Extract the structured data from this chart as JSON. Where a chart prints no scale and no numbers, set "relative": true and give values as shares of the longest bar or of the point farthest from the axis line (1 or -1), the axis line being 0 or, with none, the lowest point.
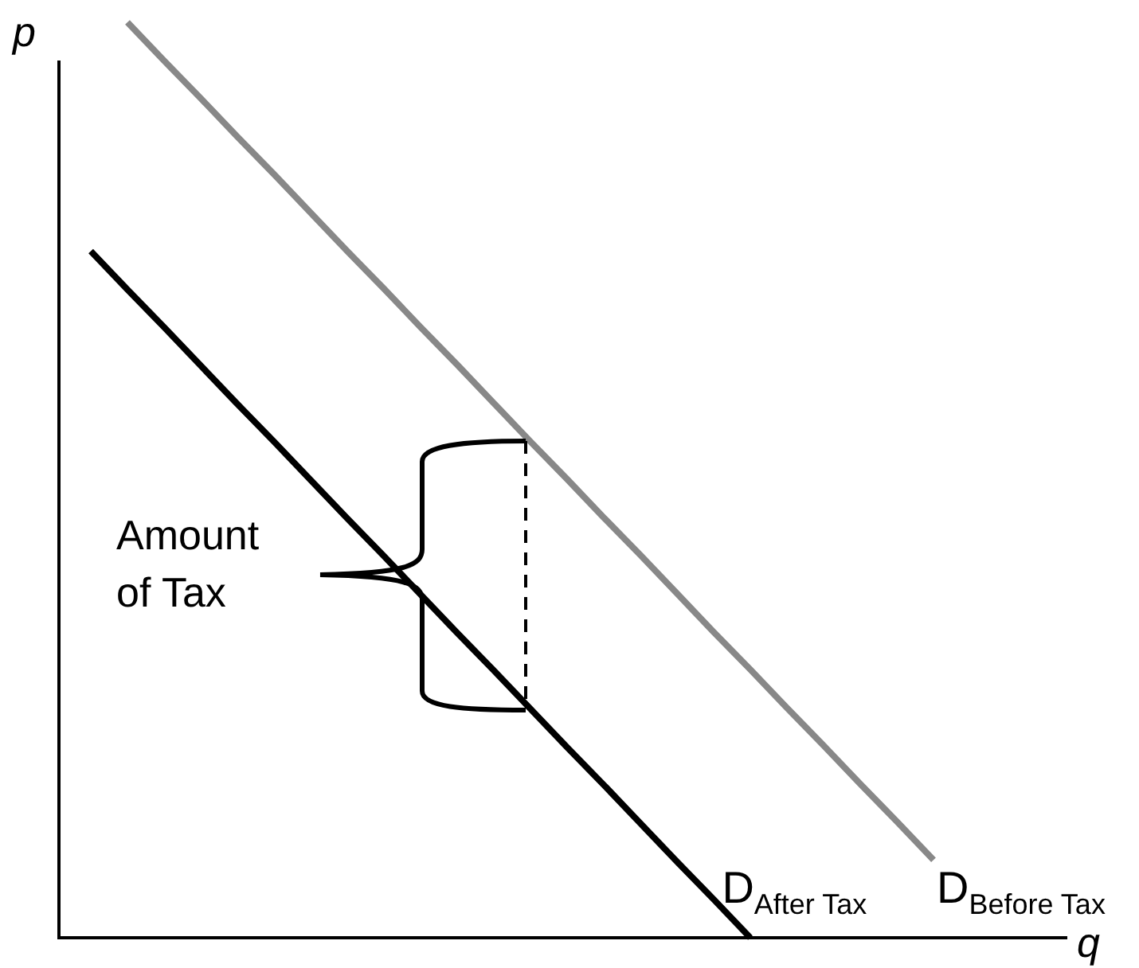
{
  "chart_data": {
    "type": "line",
    "relative": true,
    "xlabel": "q",
    "ylabel": "p",
    "tick_labels": false,
    "legend": false,
    "marker": "none",
    "annotations": [
      "Amount of Tax"
    ],
    "categories": [
      null,
      null,
      null,
      null,
      null,
      null,
      null,
      null,
      null,
      null,
      null,
      null,
      null,
      null,
      null,
      null,
      null,
      null,
      null,
      null,
      null,
      null,
      null,
      null
    ],
    "series": [
      {
        "name": "D$_{Before Tax}$",
        "color": "#888888",
        "values": [
          null,
          1,
          0.958,
          0.917,
          0.875,
          0.834,
          0.792,
          0.75,
          0.709,
          0.667,
          0.626,
          0.584,
          0.542,
          0.501,
          0.459,
          0.418,
          0.376,
          0.334,
          0.293,
          0.251,
          0.21,
          0.168,
          0.127,
          0.085
        ]
      },
      {
        "name": "D$_{After Tax}$",
        "color": "#000000",
        "values": [
          0.75,
          0.708,
          0.667,
          0.625,
          0.583,
          0.542,
          0.5,
          0.458,
          0.417,
          0.375,
          0.333,
          0.292,
          0.25,
          0.208,
          0.167,
          0.125,
          0.083,
          0.042,
          0,
          null,
          null,
          null,
          null,
          null
        ]
      }
    ]
  }
}
